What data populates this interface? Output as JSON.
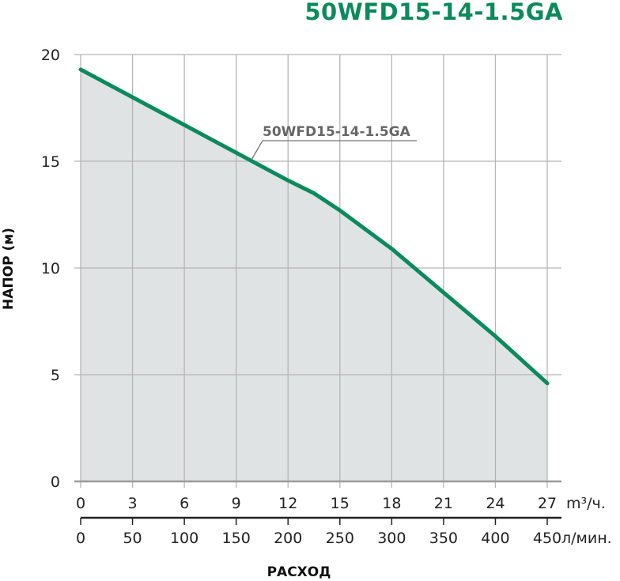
{
  "chart_data": {
    "type": "area",
    "title": "50WFD15-14-1.5GA",
    "xlabel": "РАСХОД",
    "ylabel": "НАПОР (м)",
    "x_unit": "m³/ч.",
    "x2_unit": "л/мин.",
    "xlim": [
      0,
      27
    ],
    "ylim": [
      0,
      20
    ],
    "x_ticks": [
      0,
      3,
      6,
      9,
      12,
      15,
      18,
      21,
      24,
      27
    ],
    "x2_ticks": [
      0,
      50,
      100,
      150,
      200,
      250,
      300,
      350,
      400,
      450
    ],
    "y_ticks": [
      0,
      5,
      10,
      15,
      20
    ],
    "grid": true,
    "series": [
      {
        "name": "50WFD15-14-1.5GA",
        "color": "#0b8a5c",
        "x": [
          0,
          3,
          6,
          9,
          12,
          13.5,
          15,
          18,
          21,
          24,
          27
        ],
        "y": [
          19.3,
          18.0,
          16.7,
          15.4,
          14.1,
          13.5,
          12.7,
          10.9,
          8.85,
          6.8,
          4.6
        ]
      }
    ],
    "annotation": "50WFD15-14-1.5GA"
  }
}
